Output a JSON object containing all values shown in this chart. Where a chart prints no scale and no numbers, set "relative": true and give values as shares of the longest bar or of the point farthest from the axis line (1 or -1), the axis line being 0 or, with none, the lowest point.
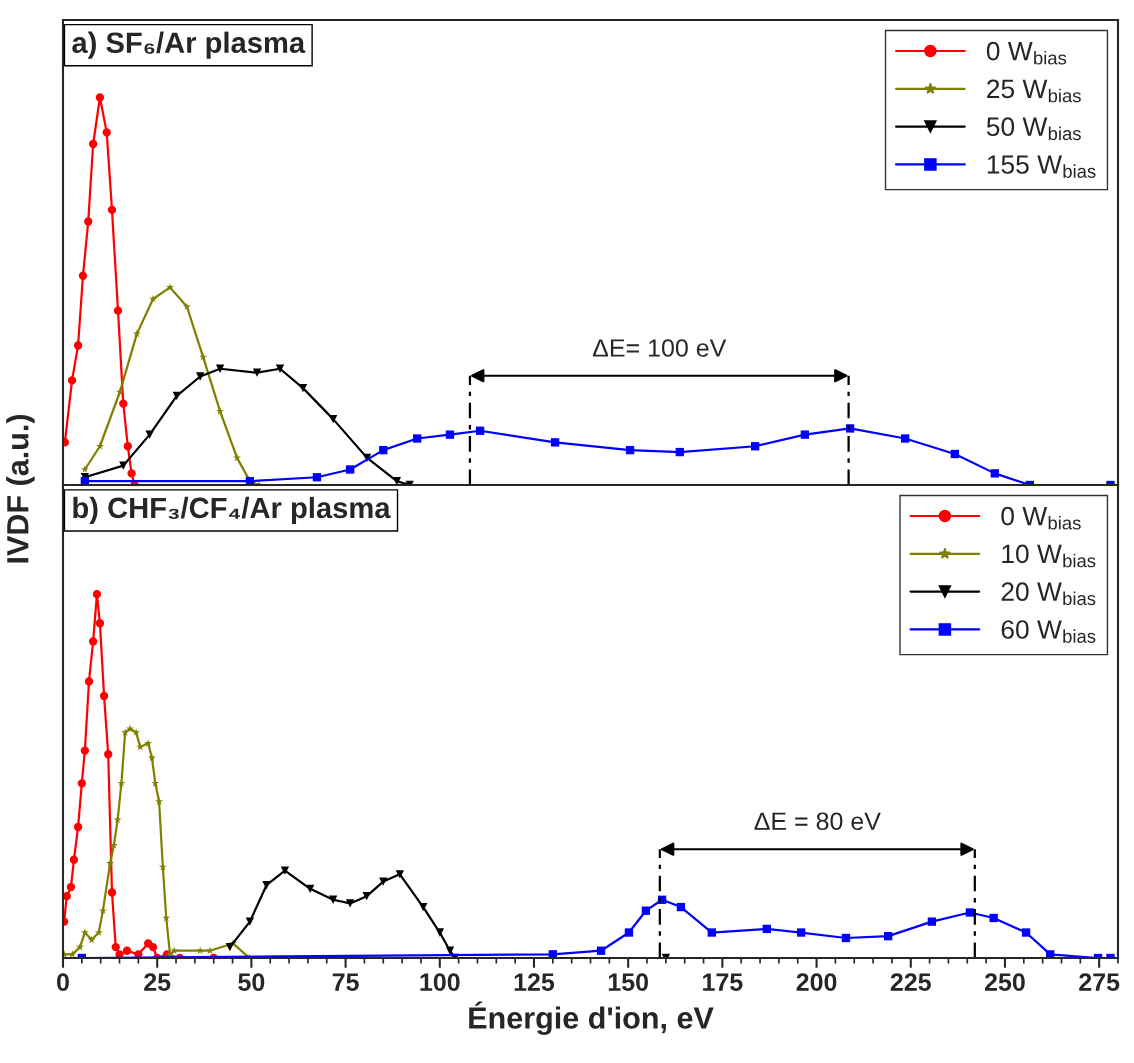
{
  "chart_data": [
    {
      "type": "line",
      "title": "a) SF₆/Ar plasma",
      "ylabel": "IVDF (a.u.)",
      "relative": true,
      "legend": "top right",
      "tick_labels": false,
      "xlim": [
        0,
        280
      ],
      "xticks": [
        0,
        25,
        50,
        75,
        100,
        125,
        150,
        175,
        200,
        225,
        250,
        275
      ],
      "annotations": [
        "ΔE= 100 eV"
      ],
      "ref_lines": [
        {
          "axis": "x",
          "value": 108,
          "color": "#000000",
          "line_style": "dashed"
        },
        {
          "axis": "x",
          "value": 208.5,
          "color": "#000000",
          "line_style": "dashed"
        }
      ],
      "series": [
        {
          "name": "0 W$_{bias}$",
          "color": "#ff0000",
          "marker": "circle",
          "x": [
            0.5,
            2.4,
            4.0,
            5.3,
            6.7,
            8.0,
            9.8,
            11.6,
            13.0,
            14.6,
            16.0,
            17.2,
            18.2,
            19.0
          ],
          "values": [
            0.11,
            0.27,
            0.36,
            0.54,
            0.68,
            0.88,
            1.0,
            0.91,
            0.71,
            0.45,
            0.21,
            0.1,
            0.03,
            0.0
          ]
        },
        {
          "name": "25 W$_{bias}$",
          "color": "#808000",
          "marker": "star",
          "x": [
            5.8,
            9.8,
            15.1,
            19.6,
            23.9,
            28.4,
            32.9,
            37.2,
            41.7,
            46.2,
            49.6,
            52.0
          ],
          "values": [
            0.04,
            0.1,
            0.24,
            0.39,
            0.48,
            0.51,
            0.46,
            0.33,
            0.19,
            0.07,
            0.01,
            0.0
          ]
        },
        {
          "name": "50 W$_{bias}$",
          "color": "#000000",
          "marker": "triangle",
          "x": [
            5.8,
            16.0,
            23.0,
            30.2,
            36.4,
            41.7,
            51.5,
            57.6,
            63.7,
            71.7,
            80.7,
            88.6,
            92.0
          ],
          "values": [
            0.02,
            0.05,
            0.13,
            0.23,
            0.28,
            0.3,
            0.29,
            0.3,
            0.25,
            0.17,
            0.07,
            0.01,
            0.0
          ]
        },
        {
          "name": "155 W$_{bias}$",
          "color": "#0000ff",
          "marker": "square",
          "x": [
            5.8,
            49.6,
            67.4,
            76.2,
            85.0,
            94.0,
            102.7,
            110.7,
            130.6,
            150.5,
            163.7,
            183.7,
            196.9,
            208.9,
            223.5,
            236.7,
            247.3,
            256.6,
            278.0
          ],
          "values": [
            0.01,
            0.01,
            0.02,
            0.04,
            0.09,
            0.12,
            0.13,
            0.14,
            0.11,
            0.09,
            0.085,
            0.1,
            0.13,
            0.146,
            0.12,
            0.08,
            0.03,
            0.0,
            0.0
          ]
        }
      ]
    },
    {
      "type": "line",
      "title": "b) CHF₃/CF₄/Ar plasma",
      "xlabel": "Énergie d'ion, eV",
      "relative": true,
      "legend": "top right",
      "tick_labels": "x",
      "xlim": [
        0,
        280
      ],
      "xticks": [
        0,
        25,
        50,
        75,
        100,
        125,
        150,
        175,
        200,
        225,
        250,
        275
      ],
      "annotations": [
        "ΔE = 80 eV"
      ],
      "ref_lines": [
        {
          "axis": "x",
          "value": 158.4,
          "color": "#000000",
          "line_style": "dashed"
        },
        {
          "axis": "x",
          "value": 242,
          "color": "#000000",
          "line_style": "dashed"
        }
      ],
      "series": [
        {
          "name": "0 W$_{bias}$",
          "color": "#ff0000",
          "marker": "circle",
          "x": [
            0.3,
            1.0,
            2.1,
            2.9,
            4.0,
            5.0,
            5.8,
            6.9,
            8.0,
            9.0,
            9.8,
            10.9,
            12.0,
            13.0,
            14.0,
            15.0,
            17.0,
            20.0,
            22.6,
            23.9,
            25.0,
            27.6,
            31.0,
            40.0
          ],
          "values": [
            0.1,
            0.17,
            0.195,
            0.27,
            0.36,
            0.48,
            0.57,
            0.76,
            0.87,
            1.0,
            0.92,
            0.72,
            0.56,
            0.18,
            0.03,
            0.01,
            0.02,
            0.01,
            0.04,
            0.03,
            0.0,
            0.01,
            0.0,
            0.0
          ]
        },
        {
          "name": "10 W$_{bias}$",
          "color": "#808000",
          "marker": "star",
          "x": [
            0.3,
            2.5,
            4.5,
            5.8,
            7.6,
            9.5,
            10.6,
            12.5,
            13.5,
            14.5,
            15.5,
            16.5,
            17.8,
            19.4,
            20.5,
            22.6,
            23.6,
            24.5,
            25.5,
            26.5,
            27.4,
            28.4,
            29.5,
            36.4,
            39.0,
            45.1,
            49.5
          ],
          "values": [
            0.01,
            0.01,
            0.03,
            0.07,
            0.05,
            0.07,
            0.13,
            0.26,
            0.31,
            0.38,
            0.48,
            0.62,
            0.63,
            0.62,
            0.58,
            0.59,
            0.55,
            0.48,
            0.43,
            0.25,
            0.11,
            0.01,
            0.02,
            0.02,
            0.02,
            0.04,
            0.0
          ]
        },
        {
          "name": "20 W$_{bias}$",
          "color": "#000000",
          "marker": "triangle",
          "x": [
            44.3,
            49.6,
            54.0,
            58.9,
            65.6,
            71.7,
            76.2,
            80.6,
            85.0,
            89.4,
            95.6,
            100.0,
            102.7,
            104.0,
            130.0,
            160.0
          ],
          "values": [
            0.03,
            0.1,
            0.2,
            0.24,
            0.19,
            0.16,
            0.15,
            0.17,
            0.21,
            0.23,
            0.14,
            0.07,
            0.02,
            0.0,
            0.0,
            0.0
          ]
        },
        {
          "name": "60 W$_{bias}$",
          "color": "#0000ff",
          "marker": "square",
          "x": [
            5.0,
            130.0,
            142.8,
            150.2,
            154.7,
            159.0,
            164.0,
            172.2,
            186.8,
            195.9,
            207.8,
            219.0,
            230.6,
            240.7,
            247.0,
            255.6,
            262.0,
            274.7,
            278.0
          ],
          "values": [
            0.0,
            0.01,
            0.02,
            0.07,
            0.13,
            0.16,
            0.14,
            0.07,
            0.08,
            0.07,
            0.055,
            0.06,
            0.1,
            0.125,
            0.11,
            0.07,
            0.01,
            0.0,
            0.0
          ]
        }
      ]
    }
  ]
}
